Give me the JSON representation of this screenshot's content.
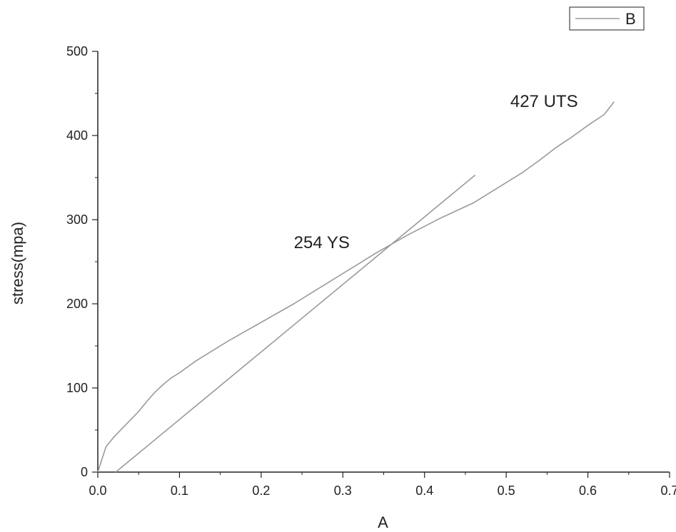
{
  "chart_data": {
    "type": "line",
    "title": "",
    "xlabel": "A",
    "ylabel": "stress(mpa)",
    "xlim": [
      0.0,
      0.7
    ],
    "ylim": [
      0,
      500
    ],
    "xticks": [
      "0.0",
      "0.1",
      "0.2",
      "0.3",
      "0.4",
      "0.5",
      "0.6",
      "0.7"
    ],
    "yticks": [
      "0",
      "100",
      "200",
      "300",
      "400",
      "500"
    ],
    "grid": false,
    "legend": {
      "placement": "top-right",
      "entries": [
        "B"
      ]
    },
    "series": [
      {
        "name": "B",
        "color": "#9a9a9a",
        "x": [
          0.0,
          0.005,
          0.01,
          0.02,
          0.03,
          0.04,
          0.05,
          0.06,
          0.07,
          0.08,
          0.09,
          0.1,
          0.12,
          0.14,
          0.16,
          0.18,
          0.2,
          0.22,
          0.24,
          0.26,
          0.28,
          0.3,
          0.32,
          0.34,
          0.36,
          0.38,
          0.4,
          0.42,
          0.44,
          0.46,
          0.48,
          0.5,
          0.52,
          0.54,
          0.56,
          0.58,
          0.6,
          0.62,
          0.632
        ],
        "y": [
          0,
          15,
          30,
          42,
          52,
          62,
          72,
          84,
          95,
          104,
          112,
          118,
          132,
          144,
          156,
          167,
          178,
          189,
          200,
          212,
          224,
          236,
          248,
          260,
          271,
          282,
          292,
          302,
          311,
          320,
          332,
          344,
          356,
          370,
          385,
          398,
          412,
          425,
          440
        ]
      },
      {
        "name": "",
        "color": "#9a9a9a",
        "x": [
          0.022,
          0.462
        ],
        "y": [
          0,
          353
        ]
      }
    ],
    "annotations": [
      {
        "text": "254 YS",
        "x": 0.24,
        "y": 266
      },
      {
        "text": "427 UTS",
        "x": 0.505,
        "y": 434
      }
    ]
  }
}
